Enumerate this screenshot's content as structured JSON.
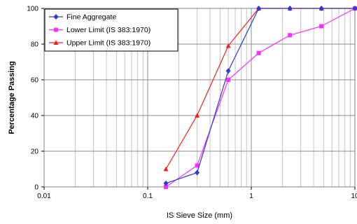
{
  "chart_data": {
    "type": "line",
    "xscale": "log",
    "xlim": [
      0.01,
      10
    ],
    "ylim": [
      0,
      100
    ],
    "x_ticks": [
      0.01,
      0.1,
      1,
      10
    ],
    "x_tick_labels": [
      "0.01",
      "0.1",
      "1",
      "10"
    ],
    "y_ticks": [
      0,
      20,
      40,
      60,
      80,
      100
    ],
    "y_tick_labels": [
      "0",
      "20",
      "40",
      "60",
      "80",
      "100"
    ],
    "xlabel": "IS Sieve Size (mm)",
    "ylabel": "Percentage Passing",
    "grid": true,
    "legend_position": "top-left",
    "series": [
      {
        "name": "Fine Aggregate",
        "color": "#2d3bd6",
        "marker": "diamond",
        "x": [
          0.15,
          0.3,
          0.6,
          1.18,
          2.36,
          4.75,
          10
        ],
        "y": [
          2,
          8,
          65,
          100,
          100,
          100,
          100
        ]
      },
      {
        "name": "Lower Limit (IS 383:1970)",
        "color": "#ff2cff",
        "marker": "square",
        "x": [
          0.15,
          0.3,
          0.6,
          1.18,
          2.36,
          4.75,
          10
        ],
        "y": [
          0,
          12,
          60,
          75,
          85,
          90,
          100
        ]
      },
      {
        "name": "Upper Limit (IS 383:1970)",
        "color": "#ff1a1a",
        "marker": "triangle",
        "x": [
          0.15,
          0.3,
          0.6,
          1.18,
          2.36,
          4.75,
          10
        ],
        "y": [
          10,
          40,
          79,
          100,
          100,
          100,
          100
        ]
      }
    ]
  }
}
